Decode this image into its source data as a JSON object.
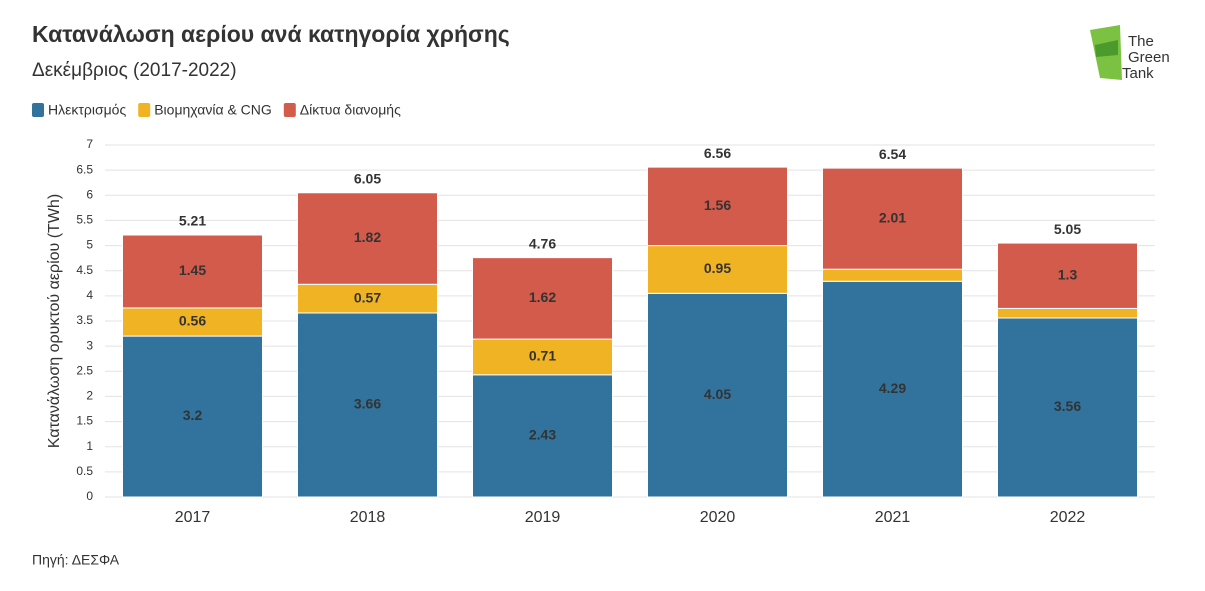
{
  "chart_data": {
    "type": "stacked-bar",
    "title": "Κατανάλωση αερίου ανά κατηγορία χρήσης",
    "subtitle": "Δεκέμβριος (2017-2022)",
    "y_label": "Κατανάλωση ορυκτού αερίου (TWh)",
    "source": "Πηγή: ΔΕΣΦΑ",
    "logo": [
      "The",
      "Green",
      "Tank"
    ],
    "categories": [
      "2017",
      "2018",
      "2019",
      "2020",
      "2021",
      "2022"
    ],
    "series": [
      {
        "name": "Ηλεκτρισμός",
        "color": "#31739c",
        "values": [
          3.2,
          3.66,
          2.43,
          4.05,
          4.29,
          3.56
        ]
      },
      {
        "name": "Βιομηχανία & CNG",
        "color": "#f0b323",
        "values": [
          0.56,
          0.57,
          0.71,
          0.95,
          0.24,
          0.19
        ],
        "value_labels": [
          "0.56",
          "0.57",
          "0.71",
          "0.95",
          null,
          null
        ]
      },
      {
        "name": "Δίκτυα διανομής",
        "color": "#d35b4b",
        "values": [
          1.45,
          1.82,
          1.62,
          1.56,
          2.01,
          1.3
        ]
      }
    ],
    "totals": [
      5.21,
      6.05,
      4.76,
      6.56,
      6.54,
      5.05
    ],
    "ylim": [
      0,
      7
    ],
    "yticks": [
      0,
      0.5,
      1,
      1.5,
      2,
      2.5,
      3,
      3.5,
      4,
      4.5,
      5,
      5.5,
      6,
      6.5,
      7
    ],
    "grid": true
  }
}
